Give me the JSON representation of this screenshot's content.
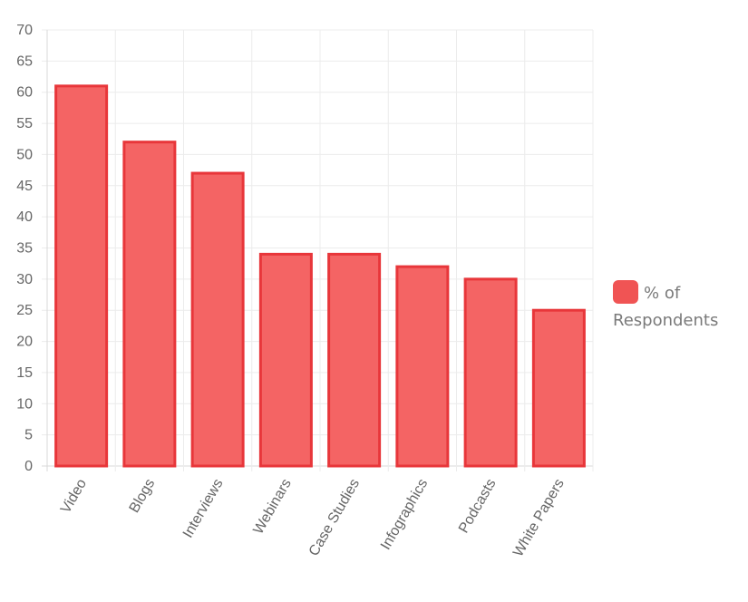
{
  "chart_data": {
    "type": "bar",
    "categories": [
      "Video",
      "Blogs",
      "Interviews",
      "Webinars",
      "Case Studies",
      "Infographics",
      "Podcasts",
      "White Papers"
    ],
    "series": [
      {
        "name": "% of Respondents",
        "values": [
          61,
          52,
          47,
          34,
          34,
          32,
          30,
          25
        ]
      }
    ],
    "ylim": [
      0,
      70
    ],
    "y_ticks": [
      0,
      5,
      10,
      15,
      20,
      25,
      30,
      35,
      40,
      45,
      50,
      55,
      60,
      65,
      70
    ],
    "grid": true,
    "legend_position": "right",
    "colors": {
      "bar_fill": "#f46464",
      "bar_border": "#e8363a",
      "legend_swatch": "#f05454",
      "grid": "#ececec",
      "tick_text": "#666666"
    }
  }
}
